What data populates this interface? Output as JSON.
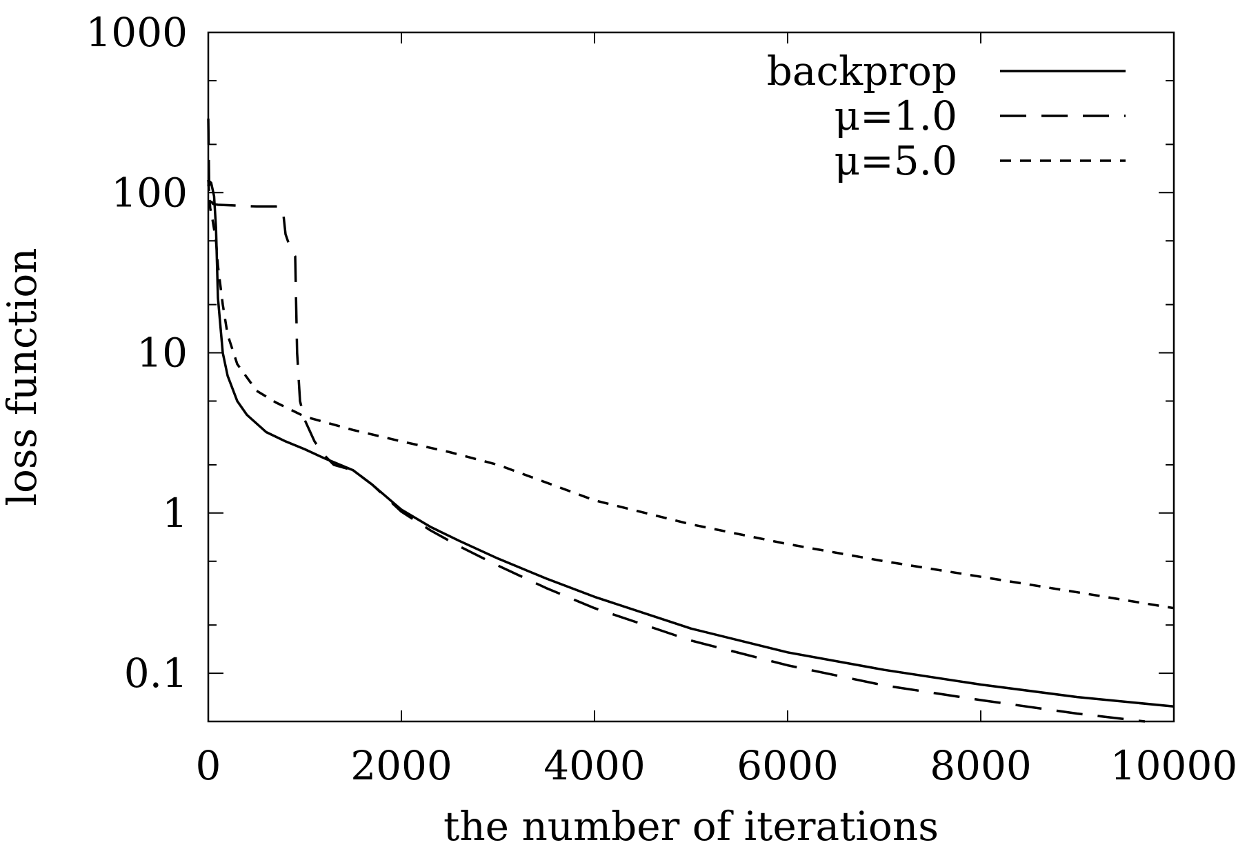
{
  "chart_data": {
    "type": "line",
    "title": "",
    "xlabel": "the number of iterations",
    "ylabel": "loss function",
    "xlim": [
      0,
      10000
    ],
    "ylim": [
      0.05,
      1000
    ],
    "y_scale": "log",
    "grid": false,
    "legend_position": "top-right",
    "x_ticks": [
      0,
      2000,
      4000,
      6000,
      8000,
      10000
    ],
    "x_tick_labels": [
      "0",
      "2000",
      "4000",
      "6000",
      "8000",
      "10000"
    ],
    "y_ticks": [
      0.1,
      1,
      10,
      100,
      1000
    ],
    "y_tick_labels": [
      "0.1",
      "1",
      "10",
      "100",
      "1000"
    ],
    "series": [
      {
        "name": "backprop",
        "line_style": "solid",
        "color": "#000000",
        "x": [
          0,
          10,
          30,
          60,
          80,
          100,
          150,
          200,
          300,
          400,
          600,
          800,
          1000,
          1200,
          1500,
          1700,
          2000,
          2300,
          2600,
          3000,
          3500,
          4000,
          5000,
          6000,
          7000,
          8000,
          9000,
          10000
        ],
        "y": [
          110,
          118,
          115,
          95,
          60,
          22,
          10,
          7.2,
          5.0,
          4.1,
          3.2,
          2.8,
          2.5,
          2.2,
          1.85,
          1.5,
          1.05,
          0.82,
          0.67,
          0.52,
          0.39,
          0.3,
          0.19,
          0.135,
          0.105,
          0.085,
          0.071,
          0.062
        ]
      },
      {
        "name": "μ=1.0",
        "line_style": "dashed",
        "color": "#000000",
        "x": [
          0,
          10,
          20,
          50,
          100,
          300,
          500,
          700,
          770,
          800,
          850,
          900,
          920,
          950,
          1000,
          1100,
          1200,
          1300,
          1500,
          1700,
          2000,
          2300,
          2600,
          3000,
          3500,
          4000,
          5000,
          6000,
          7000,
          8000,
          9000,
          9700
        ],
        "y": [
          290,
          100,
          90,
          85,
          84,
          83,
          82,
          82,
          81,
          55,
          45,
          40,
          10,
          5.0,
          3.8,
          2.8,
          2.3,
          2.0,
          1.85,
          1.5,
          1.02,
          0.78,
          0.62,
          0.47,
          0.34,
          0.255,
          0.16,
          0.112,
          0.084,
          0.068,
          0.056,
          0.05
        ]
      },
      {
        "name": "μ=5.0",
        "line_style": "short-dashed",
        "color": "#000000",
        "x": [
          0,
          20,
          40,
          80,
          100,
          150,
          200,
          300,
          500,
          700,
          1000,
          1500,
          2000,
          2500,
          3000,
          3500,
          4000,
          5000,
          6000,
          7000,
          8000,
          9000,
          10000
        ],
        "y": [
          120,
          80,
          70,
          50,
          35,
          20,
          13,
          8.5,
          5.8,
          4.9,
          4.0,
          3.3,
          2.8,
          2.4,
          2.0,
          1.55,
          1.2,
          0.85,
          0.64,
          0.5,
          0.4,
          0.32,
          0.255
        ]
      }
    ]
  }
}
